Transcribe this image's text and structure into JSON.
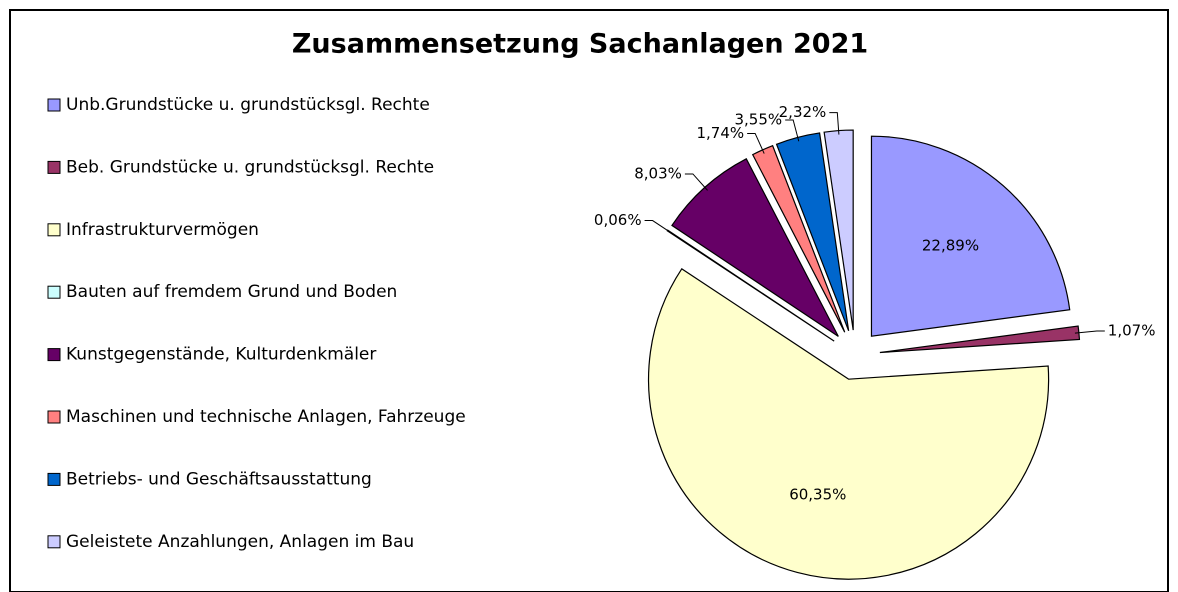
{
  "chart_data": {
    "type": "pie",
    "title": "Zusammensetzung Sachanlagen 2021",
    "categories": [
      "Unb.Grundstücke u. grundstücksgl. Rechte",
      "Beb. Grundstücke u. grundstücksgl. Rechte",
      "Infrastrukturvermögen",
      "Bauten auf fremdem Grund und Boden",
      "Kunstgegenstände, Kulturdenkmäler",
      "Maschinen und technische Anlagen, Fahrzeuge",
      "Betriebs- und Geschäftsausstattung",
      "Geleistete Anzahlungen, Anlagen im Bau"
    ],
    "values": [
      22.89,
      1.07,
      60.35,
      0.06,
      8.03,
      1.74,
      3.55,
      2.32
    ],
    "value_labels": [
      "22,89%",
      "1,07%",
      "60,35%",
      "0,06%",
      "8,03%",
      "1,74%",
      "3,55%",
      "2,32%"
    ],
    "colors": [
      "#9999ff",
      "#993366",
      "#ffffcc",
      "#ccffff",
      "#660066",
      "#ff8080",
      "#0066cc",
      "#ccccff"
    ],
    "legend": "left"
  }
}
